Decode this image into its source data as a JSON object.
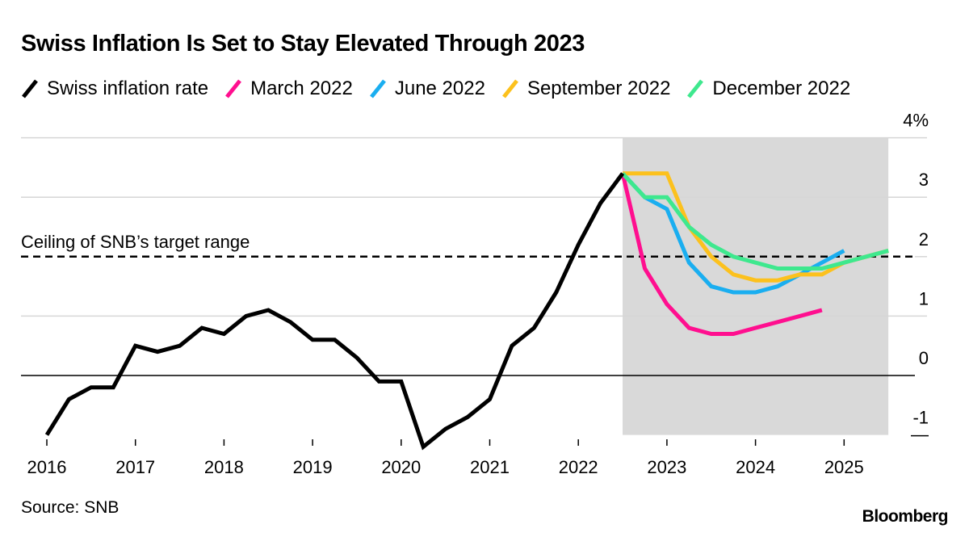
{
  "chart_data": {
    "type": "line",
    "title": "Swiss Inflation Is Set to Stay Elevated Through 2023",
    "xlabel": "",
    "ylabel": "",
    "xlim": [
      2016,
      2025.75
    ],
    "ylim": [
      -1,
      4
    ],
    "x_ticks": [
      2016,
      2017,
      2018,
      2019,
      2020,
      2021,
      2022,
      2023,
      2024,
      2025
    ],
    "x_tick_labels": [
      "2016",
      "2017",
      "2018",
      "2019",
      "2020",
      "2021",
      "2022",
      "2023",
      "2024",
      "2025"
    ],
    "y_ticks": [
      -1,
      0,
      1,
      2,
      3,
      4
    ],
    "y_tick_labels": [
      "-1",
      "0",
      "1",
      "2",
      "3",
      "4%"
    ],
    "grid": true,
    "legend_position": "top",
    "forecast_shade": {
      "x_start": 2022.5,
      "x_end": 2025.5,
      "color": "#d9d9d9"
    },
    "reference_line": {
      "y": 2,
      "label": "Ceiling of SNB’s target range",
      "style": "dashed"
    },
    "series": [
      {
        "name": "Swiss inflation rate",
        "color": "#000000",
        "x": [
          2016,
          2016.25,
          2016.5,
          2016.75,
          2017,
          2017.25,
          2017.5,
          2017.75,
          2018,
          2018.25,
          2018.5,
          2018.75,
          2019,
          2019.25,
          2019.5,
          2019.75,
          2020,
          2020.25,
          2020.5,
          2020.75,
          2021,
          2021.25,
          2021.5,
          2021.75,
          2022,
          2022.25,
          2022.5
        ],
        "values": [
          -1.0,
          -0.4,
          -0.2,
          -0.2,
          0.5,
          0.4,
          0.5,
          0.8,
          0.7,
          1.0,
          1.1,
          0.9,
          0.6,
          0.6,
          0.3,
          -0.1,
          -0.1,
          -1.2,
          -0.9,
          -0.7,
          -0.4,
          0.5,
          0.8,
          1.4,
          2.2,
          2.9,
          3.4
        ]
      },
      {
        "name": "March 2022",
        "color": "#ff0f8f",
        "x": [
          2022.5,
          2022.75,
          2023,
          2023.25,
          2023.5,
          2023.75,
          2024,
          2024.25,
          2024.5,
          2024.75
        ],
        "values": [
          3.4,
          1.8,
          1.2,
          0.8,
          0.7,
          0.7,
          0.8,
          0.9,
          1.0,
          1.1
        ]
      },
      {
        "name": "June 2022",
        "color": "#1aaef0",
        "x": [
          2022.5,
          2022.75,
          2023,
          2023.25,
          2023.5,
          2023.75,
          2024,
          2024.25,
          2024.5,
          2024.75,
          2025
        ],
        "values": [
          3.4,
          3.0,
          2.8,
          1.9,
          1.5,
          1.4,
          1.4,
          1.5,
          1.7,
          1.9,
          2.1
        ]
      },
      {
        "name": "September 2022",
        "color": "#fcc11d",
        "x": [
          2022.5,
          2022.75,
          2023,
          2023.25,
          2023.5,
          2023.75,
          2024,
          2024.25,
          2024.5,
          2024.75,
          2025,
          2025.25,
          2025.5
        ],
        "values": [
          3.4,
          3.4,
          3.4,
          2.5,
          2.0,
          1.7,
          1.6,
          1.6,
          1.7,
          1.7,
          1.9,
          2.0,
          2.1
        ]
      },
      {
        "name": "December 2022",
        "color": "#3ee88e",
        "x": [
          2022.5,
          2022.75,
          2023,
          2023.25,
          2023.5,
          2023.75,
          2024,
          2024.25,
          2024.5,
          2024.75,
          2025,
          2025.25,
          2025.5
        ],
        "values": [
          3.4,
          3.0,
          3.0,
          2.5,
          2.2,
          2.0,
          1.9,
          1.8,
          1.8,
          1.8,
          1.9,
          2.0,
          2.1
        ]
      }
    ]
  },
  "footer": {
    "source": "Source: SNB",
    "brand": "Bloomberg"
  }
}
